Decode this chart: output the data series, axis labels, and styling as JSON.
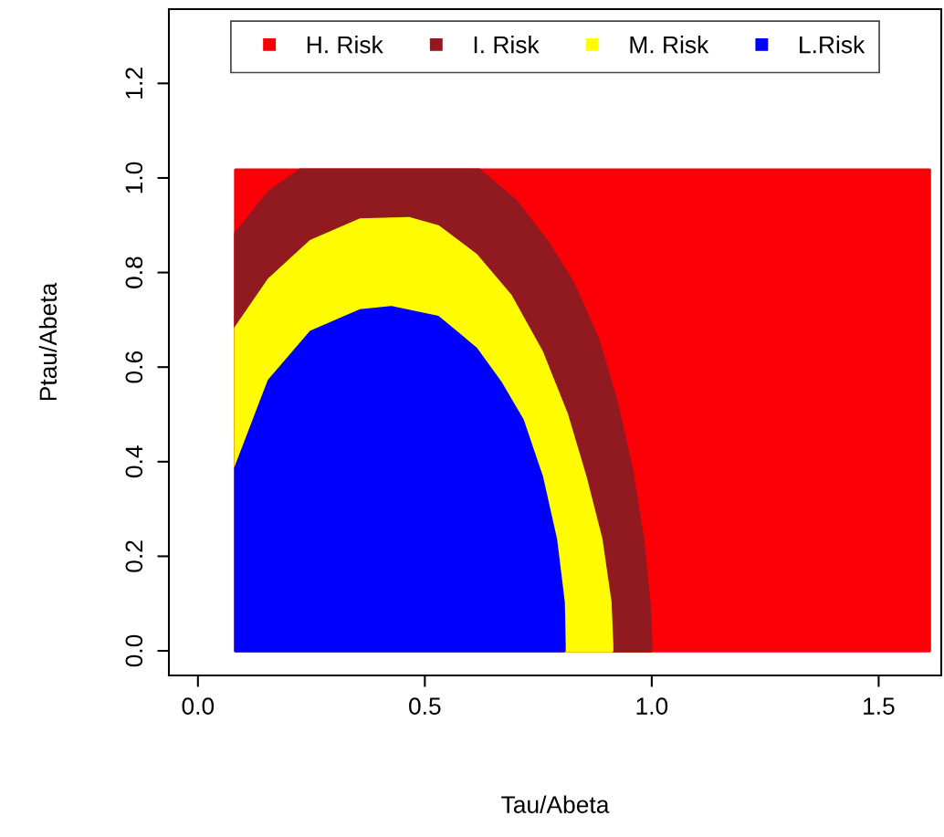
{
  "chart_data": {
    "type": "area",
    "xlabel": "Tau/Abeta",
    "ylabel": "Ptau/Abeta",
    "xlim": [
      -0.064,
      1.638
    ],
    "ylim": [
      -0.052,
      1.357
    ],
    "xticks": [
      {
        "value": 0,
        "label": "0.0"
      },
      0.5,
      {
        "value": 1,
        "label": "1.0"
      },
      1.5
    ],
    "yticks": [
      {
        "value": 0,
        "label": "0.0"
      },
      0.2,
      0.4,
      0.6,
      0.8,
      {
        "value": 1,
        "label": "1.0"
      },
      1.2
    ],
    "grid": false,
    "legend": "top",
    "series": [
      {
        "name": "H. Risk",
        "color": "#fb0007",
        "x": [
          0.083,
          1.612
        ],
        "values": [
          1.017,
          1.017
        ]
      },
      {
        "name": "I. Risk",
        "color": "#901a20",
        "x": [
          0.083,
          0.157,
          0.226,
          0.619,
          0.701,
          0.77,
          0.826,
          0.881,
          0.922,
          0.956,
          0.98,
          0.994,
          0.998
        ],
        "values": [
          0.882,
          0.97,
          1.017,
          1.017,
          0.95,
          0.864,
          0.778,
          0.659,
          0.526,
          0.381,
          0.236,
          0.103,
          0.012
        ]
      },
      {
        "name": "M. Risk",
        "color": "#fffb00",
        "x": [
          0.083,
          0.157,
          0.249,
          0.357,
          0.465,
          0.529,
          0.612,
          0.688,
          0.757,
          0.812,
          0.853,
          0.888,
          0.908,
          0.912
        ],
        "values": [
          0.682,
          0.785,
          0.866,
          0.911,
          0.914,
          0.897,
          0.837,
          0.751,
          0.632,
          0.5,
          0.368,
          0.236,
          0.103,
          0.012
        ]
      },
      {
        "name": "L.Risk",
        "color": "#0000fe",
        "x": [
          0.083,
          0.157,
          0.249,
          0.357,
          0.426,
          0.529,
          0.612,
          0.667,
          0.715,
          0.757,
          0.788,
          0.805,
          0.807
        ],
        "values": [
          0.386,
          0.571,
          0.674,
          0.719,
          0.726,
          0.705,
          0.639,
          0.566,
          0.487,
          0.368,
          0.236,
          0.103,
          0.012
        ]
      }
    ]
  }
}
